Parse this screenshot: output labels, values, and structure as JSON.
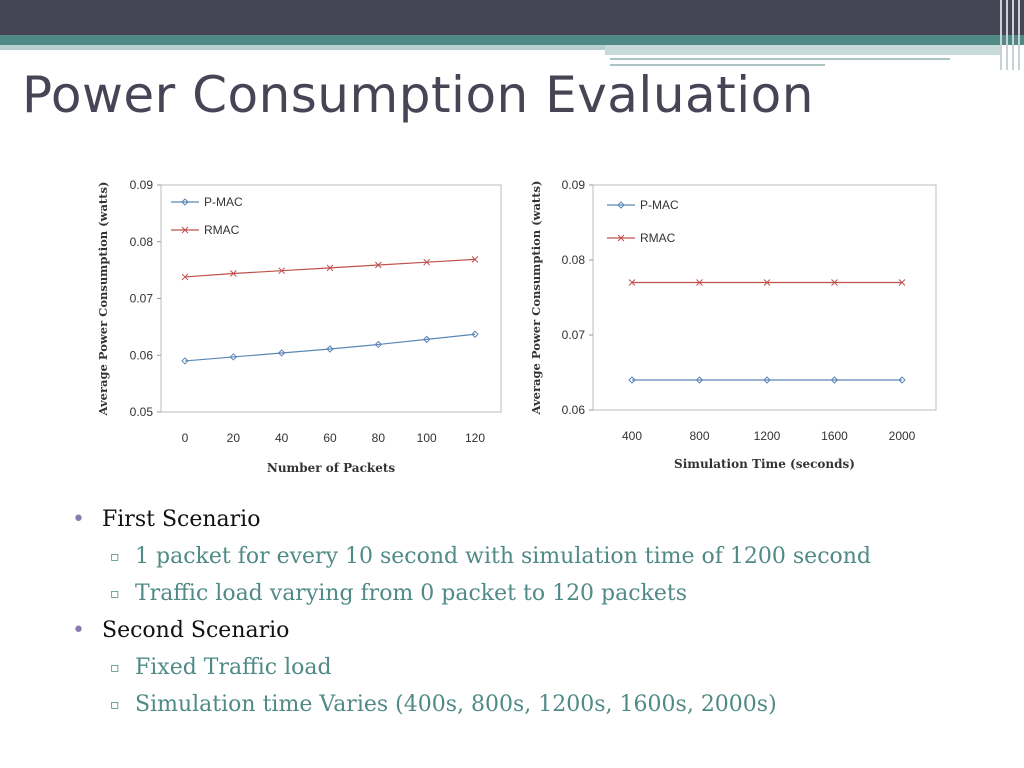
{
  "slide": {
    "title": "Power Consumption Evaluation",
    "bullets": [
      {
        "text": "First Scenario",
        "subs": [
          "1 packet for every 10 second with simulation time of 1200 second",
          "Traffic load varying from 0 packet to 120 packets"
        ]
      },
      {
        "text": "Second Scenario",
        "subs": [
          "Fixed Traffic load",
          "Simulation time Varies (400s, 800s, 1200s, 1600s, 2000s)"
        ]
      }
    ]
  },
  "colors": {
    "pmac": "#5b87b5",
    "rmac": "#c0504d",
    "title": "#454555",
    "accent": "#4f8a86"
  },
  "chart_data": [
    {
      "type": "line",
      "xlabel": "Number of Packets",
      "ylabel": "Average Power Consumption (watts)",
      "x": [
        0,
        20,
        40,
        60,
        80,
        100,
        120
      ],
      "x_ticks": [
        "0",
        "20",
        "40",
        "60",
        "80",
        "100",
        "120"
      ],
      "y_ticks": [
        "0.05",
        "0.06",
        "0.07",
        "0.08",
        "0.09"
      ],
      "ylim": [
        0.05,
        0.09
      ],
      "legend": "top-left",
      "grid": false,
      "series": [
        {
          "name": "P-MAC",
          "values": [
            0.059,
            0.0597,
            0.0604,
            0.0611,
            0.0619,
            0.0628,
            0.0637
          ]
        },
        {
          "name": "RMAC",
          "values": [
            0.0738,
            0.0744,
            0.0749,
            0.0754,
            0.0759,
            0.0764,
            0.0769
          ]
        }
      ]
    },
    {
      "type": "line",
      "xlabel": "Simulation Time (seconds)",
      "ylabel": "Average Power Consumption (watts)",
      "x": [
        400,
        800,
        1200,
        1600,
        2000
      ],
      "x_ticks": [
        "400",
        "800",
        "1200",
        "1600",
        "2000"
      ],
      "y_ticks": [
        "0.06",
        "0.07",
        "0.08",
        "0.09"
      ],
      "ylim": [
        0.06,
        0.09
      ],
      "legend": "top-left",
      "grid": false,
      "series": [
        {
          "name": "P-MAC",
          "values": [
            0.064,
            0.064,
            0.064,
            0.064,
            0.064
          ]
        },
        {
          "name": "RMAC",
          "values": [
            0.077,
            0.077,
            0.077,
            0.077,
            0.077
          ]
        }
      ]
    }
  ]
}
